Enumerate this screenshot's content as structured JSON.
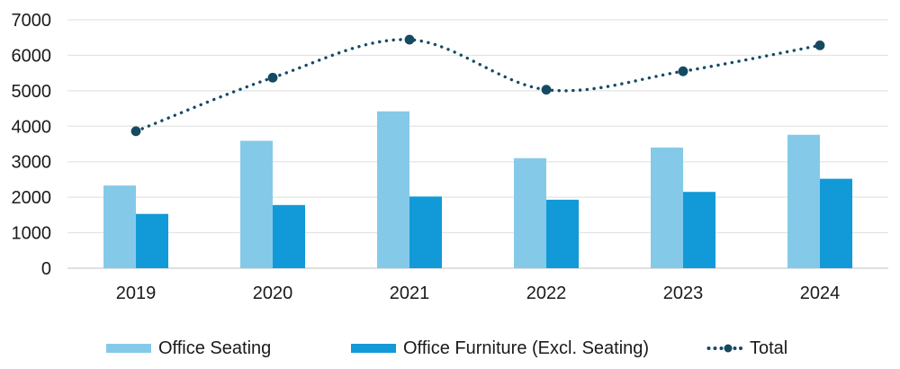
{
  "chart_data": {
    "type": "bar",
    "subtype": "grouped-bars-with-dotted-line-overlay",
    "title": "",
    "xlabel": "",
    "ylabel": "",
    "categories": [
      "2019",
      "2020",
      "2021",
      "2022",
      "2023",
      "2024"
    ],
    "series": [
      {
        "name": "Office Seating",
        "type": "bar",
        "color": "#85C9E9",
        "values": [
          2330,
          3590,
          4420,
          3100,
          3400,
          3760
        ]
      },
      {
        "name": "Office Furniture (Excl. Seating)",
        "type": "bar",
        "color": "#119AD7",
        "values": [
          1530,
          1780,
          2020,
          1930,
          2150,
          2520
        ]
      },
      {
        "name": "Total",
        "type": "line",
        "line_style": "dotted",
        "marker": "circle",
        "color": "#154A63",
        "values": [
          3860,
          5370,
          6440,
          5030,
          5550,
          6280
        ]
      }
    ],
    "ylim": [
      0,
      7000
    ],
    "ytick_step": 1000,
    "ytick_labels": [
      "0",
      "1000",
      "2000",
      "3000",
      "4000",
      "5000",
      "6000",
      "7000"
    ],
    "grid": "horizontal",
    "legend_position": "bottom"
  },
  "legend": {
    "items": [
      {
        "label": "Office Seating",
        "color": "#85C9E9",
        "marker": "square"
      },
      {
        "label": "Office Furniture (Excl. Seating)",
        "color": "#119AD7",
        "marker": "square"
      },
      {
        "label": "Total",
        "color": "#154A63",
        "marker": "dotted-line"
      }
    ]
  },
  "colors": {
    "background": "#ffffff",
    "gridline": "#e4e4e4",
    "axis_line": "#d6d6d6",
    "text": "#1a1a1a"
  }
}
